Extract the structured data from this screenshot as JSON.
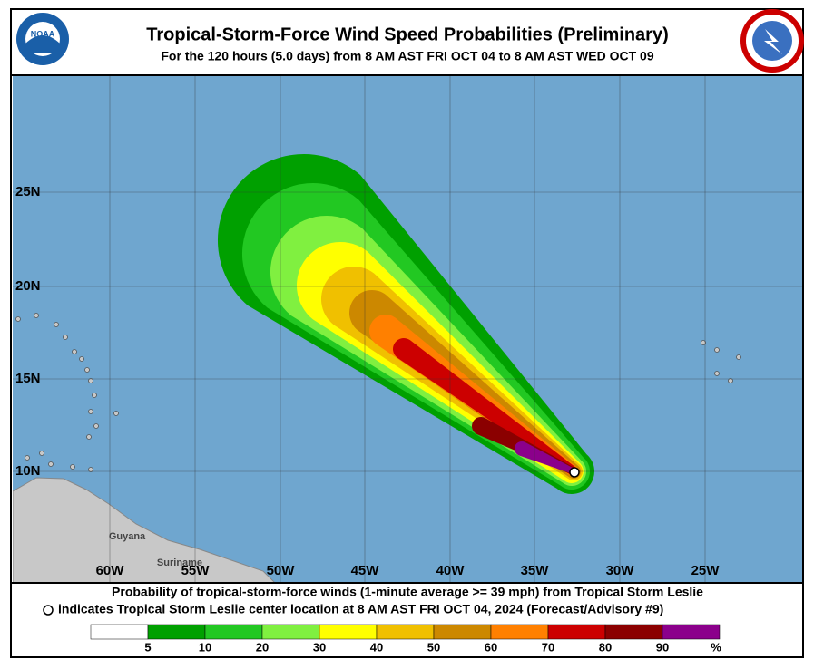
{
  "header": {
    "title": "Tropical-Storm-Force Wind Speed Probabilities (Preliminary)",
    "subtitle": "For the 120 hours (5.0 days) from 8 AM AST FRI OCT 04 to 8 AM AST WED OCT 09",
    "logo_left": "NOAA"
  },
  "map": {
    "longitude_labels": [
      "60W",
      "55W",
      "50W",
      "45W",
      "40W",
      "35W",
      "30W",
      "25W"
    ],
    "latitude_labels": [
      "25N",
      "20N",
      "15N",
      "10N"
    ],
    "places": [
      "Guyana",
      "Suriname"
    ]
  },
  "caption": {
    "line1": "Probability of tropical-storm-force winds (1-minute average >= 39 mph) from Tropical Storm Leslie",
    "line2": "indicates Tropical Storm Leslie center location at 8 AM AST FRI OCT 04, 2024 (Forecast/Advisory #9)"
  },
  "legend": {
    "colors": [
      "#ffffff",
      "#00a000",
      "#22c822",
      "#80f040",
      "#ffff00",
      "#f0c000",
      "#cc8800",
      "#ff8000",
      "#cc0000",
      "#8b0000",
      "#8b008b"
    ],
    "labels": [
      "5",
      "10",
      "20",
      "30",
      "40",
      "50",
      "60",
      "70",
      "80",
      "90"
    ],
    "unit": "%"
  }
}
